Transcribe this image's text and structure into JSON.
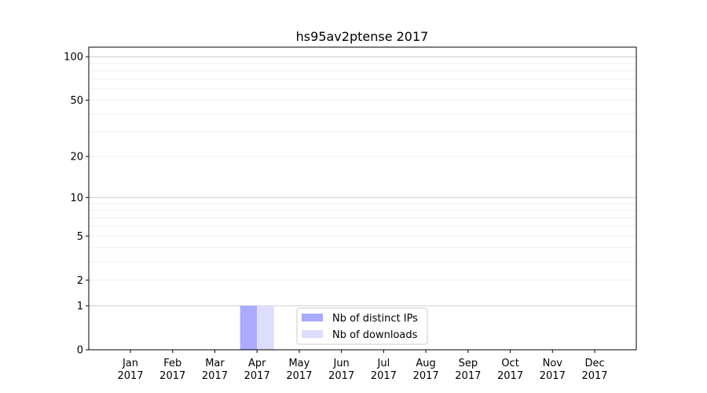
{
  "chart_data": {
    "type": "bar",
    "title": "hs95av2ptense 2017",
    "xlabel": "",
    "ylabel": "",
    "y_scale": "symlog (log of 1+y)",
    "ylim": [
      0,
      116
    ],
    "y_ticks": [
      0,
      1,
      2,
      5,
      10,
      20,
      50,
      100
    ],
    "grid": true,
    "legend_position": "lower center",
    "categories": [
      "Jan\n2017",
      "Feb\n2017",
      "Mar\n2017",
      "Apr\n2017",
      "May\n2017",
      "Jun\n2017",
      "Jul\n2017",
      "Aug\n2017",
      "Sep\n2017",
      "Oct\n2017",
      "Nov\n2017",
      "Dec\n2017"
    ],
    "series": [
      {
        "name": "Nb of distinct IPs",
        "color": "#aaaaff",
        "values": [
          0,
          0,
          0,
          1,
          0,
          0,
          0,
          0,
          0,
          0,
          0,
          0
        ]
      },
      {
        "name": "Nb of downloads",
        "color": "#ddddff",
        "values": [
          0,
          0,
          0,
          1,
          0,
          0,
          0,
          0,
          0,
          0,
          0,
          0
        ]
      }
    ]
  }
}
